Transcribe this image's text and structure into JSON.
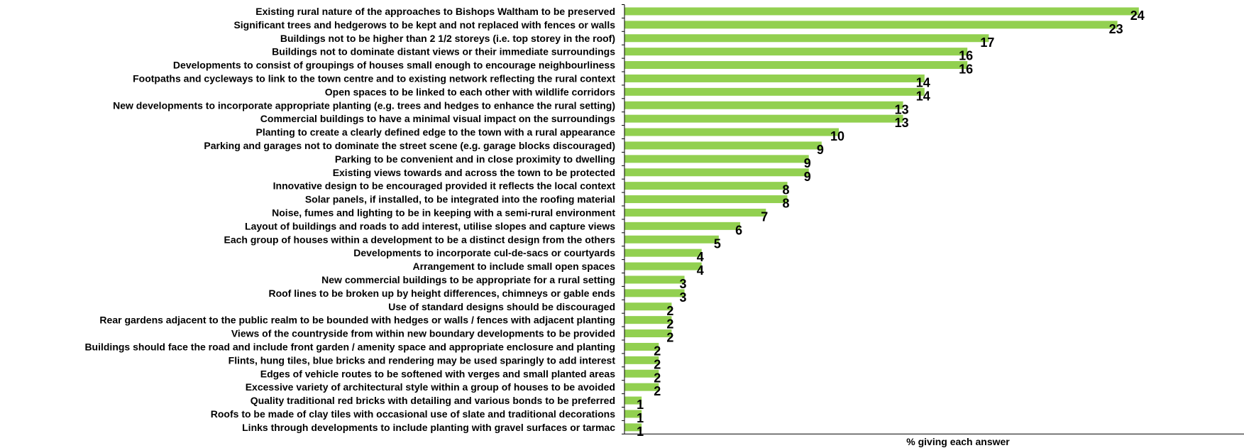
{
  "chart_data": {
    "type": "bar",
    "orientation": "horizontal",
    "title": "",
    "xlabel": "% giving each answer",
    "ylabel": "",
    "xlim": [
      0,
      29
    ],
    "grid": false,
    "legend": "none",
    "bar_color": "#92d050",
    "categories": [
      "Existing rural nature of the approaches to Bishops Waltham to be preserved",
      "Significant trees and hedgerows to be kept and not replaced with fences or walls",
      "Buildings not to be higher than 2 1/2 storeys (i.e. top storey in the roof)",
      "Buildings not to dominate distant views or their immediate surroundings",
      "Developments to consist of groupings of houses small enough to encourage neighbourliness",
      "Footpaths and cycleways to link to the town centre and to existing network reflecting the rural context",
      "Open spaces to be linked to each other with wildlife corridors",
      "New developments to incorporate appropriate planting (e.g. trees and hedges to enhance the rural setting)",
      "Commercial buildings to have a minimal visual impact on the surroundings",
      "Planting to create a clearly defined edge to the town with a rural appearance",
      "Parking and garages not to dominate the street scene (e.g. garage blocks discouraged)",
      "Parking to be convenient and in close proximity to dwelling",
      "Existing views towards and across the town to be protected",
      "Innovative design to be encouraged provided it reflects the local context",
      "Solar panels, if installed, to be integrated into the roofing material",
      "Noise, fumes and lighting to be in keeping with a semi-rural environment",
      "Layout of buildings and roads to add interest, utilise slopes and capture views",
      "Each group of houses within a development to be a distinct design from the others",
      "Developments to incorporate cul-de-sacs or courtyards",
      "Arrangement to include small open spaces",
      "New commercial buildings to be appropriate for a rural setting",
      "Roof lines to be broken up by height differences, chimneys or gable ends",
      "Use of standard designs should be discouraged",
      "Rear gardens adjacent to the public realm to be bounded with hedges or walls / fences with adjacent planting",
      "Views of the countryside from within new boundary developments to be provided",
      "Buildings should face the road and include front garden / amenity space and appropriate enclosure and planting",
      "Flints, hung tiles, blue bricks and rendering may be used sparingly to add interest",
      "Edges of vehicle routes to be softened with verges and small planted areas",
      "Excessive variety of architectural style within a group of houses to be avoided",
      "Quality traditional red bricks with detailing and various bonds to be preferred",
      "Roofs to be made of clay tiles with occasional use of slate and traditional decorations",
      "Links through developments to include planting with gravel surfaces or tarmac"
    ],
    "values": [
      24,
      23,
      17,
      16,
      16,
      14,
      14,
      13,
      13,
      10,
      9,
      9,
      9,
      8,
      8,
      7,
      6,
      5,
      4,
      4,
      3,
      3,
      2,
      2,
      2,
      2,
      2,
      2,
      2,
      1,
      1,
      1
    ],
    "display_values": [
      24,
      23,
      17,
      16,
      16,
      14,
      14,
      13,
      13,
      10,
      9,
      9,
      9,
      8,
      8,
      7,
      6,
      5,
      4,
      4,
      3,
      3,
      2,
      2,
      2,
      2,
      2,
      2,
      2,
      1,
      1,
      1
    ],
    "bar_values": [
      24,
      23,
      17,
      16,
      16,
      14,
      14,
      13,
      13,
      10,
      9.2,
      8.6,
      8.6,
      7.6,
      7.6,
      6.6,
      5.4,
      4.4,
      3.6,
      3.6,
      2.8,
      2.8,
      2.2,
      2.2,
      2.2,
      1.6,
      1.6,
      1.6,
      1.6,
      0.8,
      0.8,
      0.8
    ]
  }
}
